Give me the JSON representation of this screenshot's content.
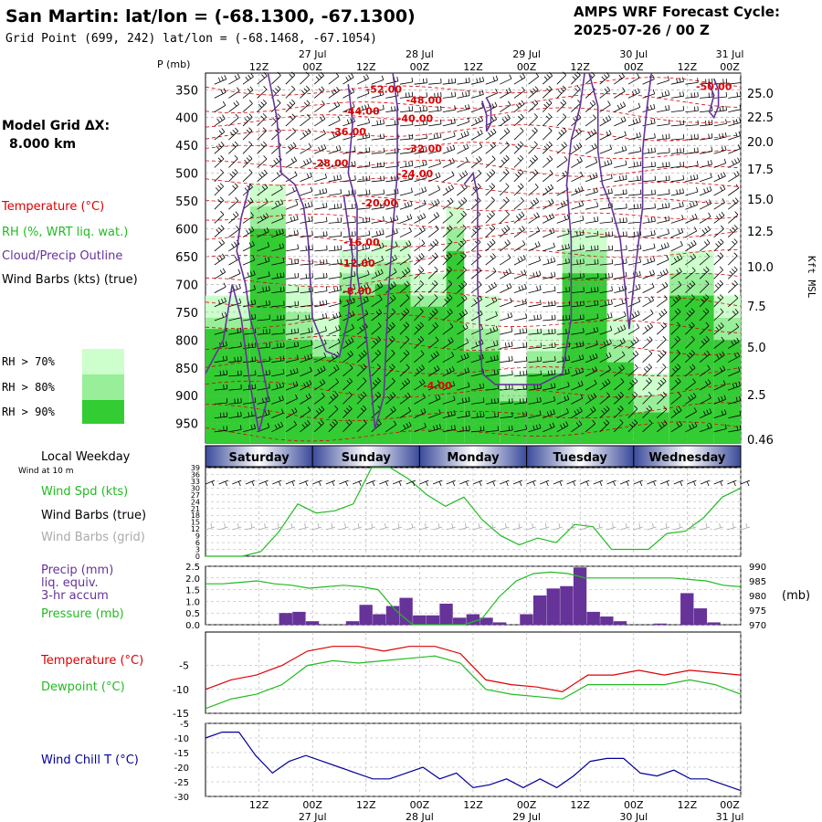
{
  "header": {
    "title": "San Martin:  lat/lon = (-68.1300, -67.1300)",
    "grid_point": "Grid Point (699, 242) lat/lon = (-68.1468, -67.1054)",
    "cycle_label": "AMPS WRF Forecast Cycle:",
    "cycle_value": "2025-07-26 / 00  Z"
  },
  "left_panel": {
    "grid_dx_label": "Model Grid ΔX:",
    "grid_dx_value": "8.000 km",
    "legend_temperature": "Temperature (°C)",
    "legend_rh": "RH (%, WRT liq. wat.)",
    "legend_cloud": "Cloud/Precip Outline",
    "legend_wind": "Wind Barbs (kts) (true)",
    "rh70": "RH > 70%",
    "rh80": "RH > 80%",
    "rh90": "RH > 90%"
  },
  "colors": {
    "temperature": "#dd0000",
    "rh70": "#ccffcc",
    "rh80": "#99ee99",
    "rh90": "#33cc33",
    "cloud": "#663399",
    "wind_speed": "#22bb22",
    "pressure": "#22bb22",
    "precip": "#663399",
    "dewpoint": "#22bb22",
    "wind_chill": "#000099",
    "wind_barb_grid": "#aaaaaa"
  },
  "time_axis": {
    "top_ticks": [
      "12Z",
      "00Z",
      "12Z",
      "00Z",
      "12Z",
      "00Z",
      "12Z",
      "00Z",
      "12Z",
      "00Z"
    ],
    "dates": [
      "27 Jul",
      "28 Jul",
      "29 Jul",
      "30 Jul",
      "31 Jul"
    ],
    "bottom_ticks": [
      "12Z",
      "00Z",
      "12Z",
      "00Z",
      "12Z",
      "00Z",
      "12Z",
      "00Z",
      "12Z",
      "00Z"
    ]
  },
  "weekdays": {
    "label": "Local Weekday",
    "days": [
      "Saturday",
      "Sunday",
      "Monday",
      "Tuesday",
      "Wednesday"
    ]
  },
  "chart_data": [
    {
      "type": "heatmap",
      "title": "",
      "ylabel_left": "P (mb)",
      "ylabel_right": "Kft MSL",
      "pressure_levels": [
        350,
        400,
        450,
        500,
        550,
        600,
        650,
        700,
        750,
        800,
        850,
        900,
        950
      ],
      "height_ticks_kft": [
        "25.0",
        "22.5",
        "20.0",
        "17.5",
        "15.0",
        "12.5",
        "10.0",
        "7.5",
        "5.0",
        "2.5",
        "0.46"
      ],
      "temperature_contour_labels": [
        "-52.00",
        "-48.00",
        "-50.00",
        "-44.00",
        "-40.00",
        "-36.00",
        "-32.00",
        "-28.00",
        "-24.00",
        "-20.00",
        "-16.00",
        "-12.00",
        "-8.00",
        "-4.00"
      ],
      "rh_thresholds": [
        "RH > 70%",
        "RH > 80%",
        "RH > 90%"
      ]
    },
    {
      "type": "line",
      "legend": [
        "Wind Spd (kts)",
        "Wind Barbs (true)",
        "Wind Barbs (grid)"
      ],
      "subtitle": "Wind at 10 m",
      "y_ticks": [
        "39",
        "36",
        "33",
        "30",
        "27",
        "24",
        "21",
        "18",
        "15",
        "12",
        "9",
        "6",
        "3",
        "0"
      ],
      "ylim": [
        0,
        39
      ],
      "series": [
        {
          "name": "Wind Spd (kts)",
          "values": [
            0,
            0,
            0,
            2,
            11,
            23,
            19,
            20,
            23,
            39,
            39,
            34,
            27,
            22,
            26,
            16,
            9,
            5,
            8,
            6,
            14,
            13,
            3,
            3,
            3,
            10,
            11,
            17,
            26,
            30
          ]
        }
      ]
    },
    {
      "type": "bar",
      "legend": [
        "Precip (mm)",
        "liq. equiv.",
        "3-hr accum",
        "Pressure (mb)"
      ],
      "y_ticks": [
        "2.5",
        "2.0",
        "1.5",
        "1.0",
        "0.5",
        "0.0"
      ],
      "y2_ticks": [
        "990",
        "985",
        "980",
        "975",
        "970"
      ],
      "y2_label": "(mb)",
      "ylim": [
        0,
        2.5
      ],
      "y2lim": [
        970,
        990
      ],
      "series": [
        {
          "name": "Precip (mm)",
          "values": [
            0,
            0,
            0,
            0,
            0,
            0.5,
            0.55,
            0.15,
            0,
            0,
            0.15,
            0.85,
            0.45,
            0.8,
            1.15,
            0.4,
            0.4,
            0.9,
            0.3,
            0.45,
            0.3,
            0.1,
            0,
            0.45,
            1.25,
            1.55,
            1.65,
            2.45,
            0.55,
            0.35,
            0.15,
            0,
            0,
            0.05,
            0,
            1.35,
            0.7,
            0.1,
            0
          ]
        },
        {
          "name": "Pressure (mb)",
          "values": [
            984,
            984,
            984.5,
            985,
            984,
            983.5,
            982.5,
            983,
            983.5,
            983,
            982,
            975,
            970,
            970,
            970,
            970,
            972,
            979.5,
            985,
            987.5,
            988,
            987.5,
            986,
            986,
            986,
            986,
            986,
            986,
            985.5,
            985,
            983.5,
            983
          ]
        }
      ]
    },
    {
      "type": "line",
      "legend": [
        "Temperature (°C)",
        "Dewpoint (°C)"
      ],
      "y_ticks": [
        "-5",
        "-10",
        "-15"
      ],
      "ylim": [
        -15,
        2
      ],
      "series": [
        {
          "name": "Temperature (°C)",
          "values": [
            -10,
            -8,
            -7,
            -5,
            -2,
            -1,
            -1,
            -2,
            -1,
            -1,
            -2.5,
            -8,
            -9,
            -9.5,
            -10.5,
            -7,
            -7,
            -6,
            -7,
            -6,
            -6.5,
            -7
          ]
        },
        {
          "name": "Dewpoint (°C)",
          "values": [
            -14,
            -12,
            -11,
            -9,
            -5,
            -4,
            -4.5,
            -4,
            -3.5,
            -3,
            -4.5,
            -10,
            -11,
            -11.5,
            -12,
            -9,
            -9,
            -9,
            -9,
            -8,
            -9,
            -11
          ]
        }
      ]
    },
    {
      "type": "line",
      "legend": [
        "Wind Chill T (°C)"
      ],
      "y_ticks": [
        "-5",
        "-10",
        "-15",
        "-20",
        "-25",
        "-30"
      ],
      "ylim": [
        -30,
        -5
      ],
      "series": [
        {
          "name": "Wind Chill T (°C)",
          "values": [
            -10,
            -8,
            -8,
            -16,
            -22,
            -18,
            -16,
            -18,
            -20,
            -22,
            -24,
            -24,
            -22,
            -20,
            -24,
            -22,
            -27,
            -26,
            -24,
            -27,
            -24,
            -27,
            -23,
            -18,
            -17,
            -17,
            -22,
            -23,
            -21,
            -24,
            -24,
            -26,
            -28
          ]
        }
      ]
    }
  ]
}
